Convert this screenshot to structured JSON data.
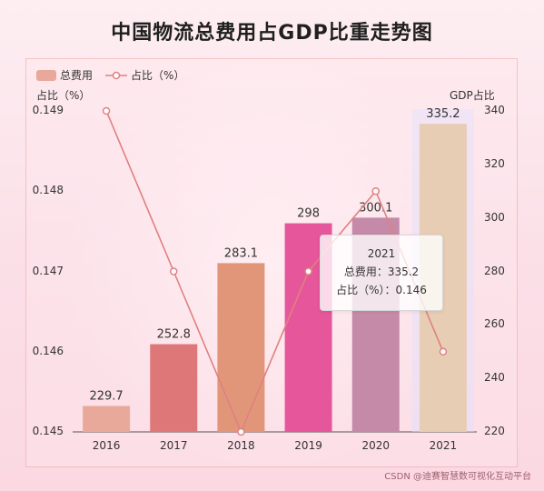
{
  "chart_data": {
    "type": "bar",
    "title": "中国物流总费用占GDP比重走势图",
    "categories": [
      "2016",
      "2017",
      "2018",
      "2019",
      "2020",
      "2021"
    ],
    "series": [
      {
        "name": "总费用",
        "type": "bar",
        "axis": "right",
        "values": [
          229.7,
          252.8,
          283.1,
          298,
          300.1,
          335.2
        ],
        "colors": [
          "#e9a99a",
          "#de7878",
          "#e1967a",
          "#e6569a",
          "#c48aa8",
          "#e8cdb5"
        ]
      },
      {
        "name": "占比（%）",
        "type": "line",
        "axis": "left",
        "values": [
          0.149,
          0.147,
          0.145,
          0.147,
          0.148,
          0.146
        ],
        "color": "#e08080"
      }
    ],
    "ylabel_left": "占比（%）",
    "ylabel_right": "GDP占比",
    "ylim_left": [
      0.145,
      0.149
    ],
    "ylim_right": [
      220,
      340
    ],
    "yticks_left": [
      "0.149",
      "0.148",
      "0.147",
      "0.146",
      "0.145"
    ],
    "yticks_right": [
      "340",
      "320",
      "300",
      "280",
      "260",
      "240",
      "220"
    ],
    "legend_position": "top-left",
    "grid": false
  },
  "tooltip": {
    "title": "2021",
    "line1": "总费用：335.2",
    "line2": "占比（%）：0.146"
  },
  "watermark": "CSDN @迪赛智慧数可视化互动平台"
}
